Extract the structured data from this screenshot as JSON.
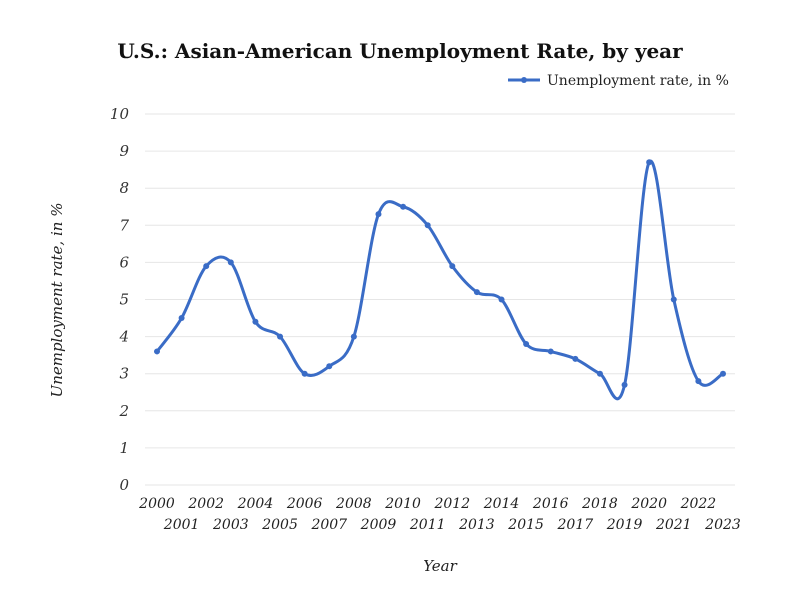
{
  "chart_data": {
    "type": "line",
    "title": "U.S.: Asian-American Unemployment Rate, by year",
    "xlabel": "Year",
    "ylabel": "Unemployment rate, in %",
    "ylim": [
      0,
      10
    ],
    "yticks": [
      "0",
      "1",
      "2",
      "3",
      "4",
      "5",
      "6",
      "7",
      "8",
      "9",
      "10"
    ],
    "grid": true,
    "legend_position": "top-right",
    "colors": {
      "series": "#3a6cc6",
      "grid": "#e6e6e6"
    },
    "categories": [
      "2000",
      "2001",
      "2002",
      "2003",
      "2004",
      "2005",
      "2006",
      "2007",
      "2008",
      "2009",
      "2010",
      "2011",
      "2012",
      "2013",
      "2014",
      "2015",
      "2016",
      "2017",
      "2018",
      "2019",
      "2020",
      "2021",
      "2022",
      "2023"
    ],
    "series": [
      {
        "name": "Unemployment rate, in %",
        "values": [
          3.6,
          4.5,
          5.9,
          6.0,
          4.4,
          4.0,
          3.0,
          3.2,
          4.0,
          7.3,
          7.5,
          7.0,
          5.9,
          5.2,
          5.0,
          3.8,
          3.6,
          3.4,
          3.0,
          2.7,
          8.7,
          5.0,
          2.8,
          3.0
        ]
      }
    ]
  }
}
